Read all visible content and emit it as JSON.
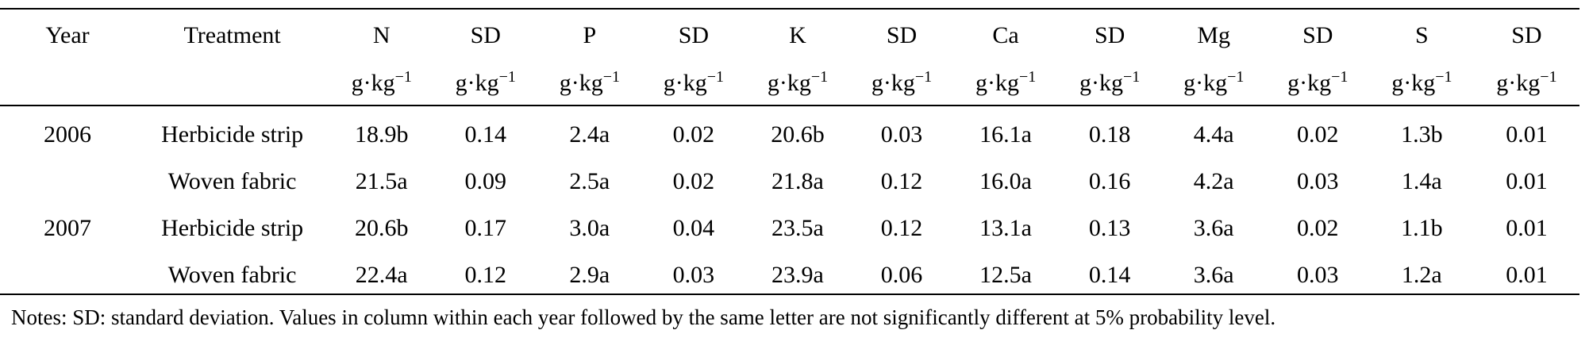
{
  "table": {
    "headers": [
      "Year",
      "Treatment",
      "N",
      "SD",
      "P",
      "SD",
      "K",
      "SD",
      "Ca",
      "SD",
      "Mg",
      "SD",
      "S",
      "SD"
    ],
    "unit_base": "g·kg",
    "unit_exp": "−1",
    "rows": [
      {
        "year": "2006",
        "treatment": "Herbicide strip",
        "values": [
          "18.9b",
          "0.14",
          "2.4a",
          "0.02",
          "20.6b",
          "0.03",
          "16.1a",
          "0.18",
          "4.4a",
          "0.02",
          "1.3b",
          "0.01"
        ]
      },
      {
        "year": "",
        "treatment": "Woven fabric",
        "values": [
          "21.5a",
          "0.09",
          "2.5a",
          "0.02",
          "21.8a",
          "0.12",
          "16.0a",
          "0.16",
          "4.2a",
          "0.03",
          "1.4a",
          "0.01"
        ]
      },
      {
        "year": "2007",
        "treatment": "Herbicide strip",
        "values": [
          "20.6b",
          "0.17",
          "3.0a",
          "0.04",
          "23.5a",
          "0.12",
          "13.1a",
          "0.13",
          "3.6a",
          "0.02",
          "1.1b",
          "0.01"
        ]
      },
      {
        "year": "",
        "treatment": "Woven fabric",
        "values": [
          "22.4a",
          "0.12",
          "2.9a",
          "0.03",
          "23.9a",
          "0.06",
          "12.5a",
          "0.14",
          "3.6a",
          "0.03",
          "1.2a",
          "0.01"
        ]
      }
    ]
  },
  "notes": "Notes: SD: standard deviation. Values in column within each year followed by the same letter are not significantly different at 5% probability level."
}
